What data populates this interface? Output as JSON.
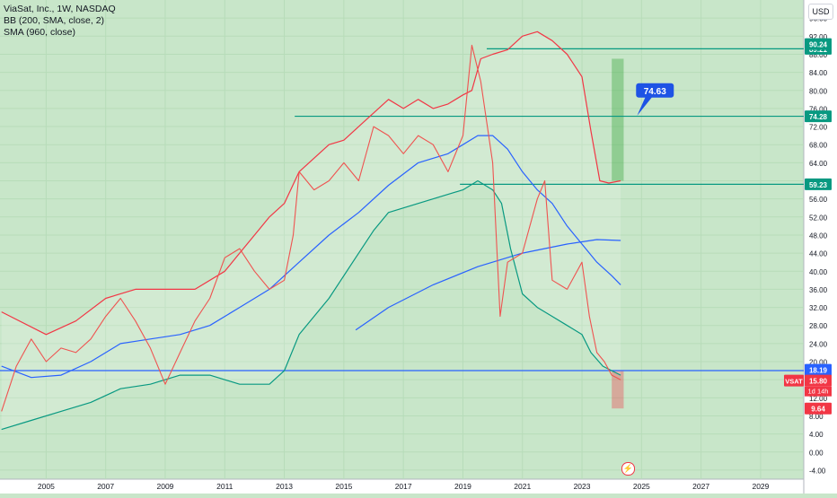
{
  "header": {
    "symbol": "ViaSat, Inc., 1W, NASDAQ",
    "bb": "BB (200, SMA, close, 2)",
    "sma": "SMA (960, close)",
    "currency": "USD",
    "bolt": "⚡"
  },
  "chart_data": {
    "type": "line",
    "title": "ViaSat, Inc., 1W, NASDAQ",
    "xlim": [
      2003.45,
      2030.45
    ],
    "ylim": [
      -6,
      100
    ],
    "x_ticks": [
      "2005",
      "2007",
      "2009",
      "2011",
      "2013",
      "2015",
      "2017",
      "2019",
      "2021",
      "2023",
      "2025",
      "2027",
      "2029"
    ],
    "y_ticks": [
      "-4.00",
      "0.00",
      "4.00",
      "8.00",
      "12.00",
      "16.00",
      "20.00",
      "24.00",
      "28.00",
      "32.00",
      "36.00",
      "40.00",
      "44.00",
      "48.00",
      "52.00",
      "56.00",
      "60.00",
      "64.00",
      "68.00",
      "72.00",
      "76.00",
      "80.00",
      "84.00",
      "88.00",
      "92.00",
      "96.00"
    ],
    "price": {
      "name": "VSAT",
      "color": "#ef5350",
      "points": [
        [
          2003.5,
          9
        ],
        [
          2004.0,
          19
        ],
        [
          2004.5,
          25
        ],
        [
          2005.0,
          20
        ],
        [
          2005.5,
          23
        ],
        [
          2006.0,
          22
        ],
        [
          2006.5,
          25
        ],
        [
          2007.0,
          30
        ],
        [
          2007.5,
          34
        ],
        [
          2008.0,
          29
        ],
        [
          2008.5,
          23
        ],
        [
          2009.0,
          15
        ],
        [
          2009.5,
          22
        ],
        [
          2010.0,
          29
        ],
        [
          2010.5,
          34
        ],
        [
          2011.0,
          43
        ],
        [
          2011.5,
          45
        ],
        [
          2012.0,
          40
        ],
        [
          2012.5,
          36
        ],
        [
          2013.0,
          38
        ],
        [
          2013.3,
          48
        ],
        [
          2013.5,
          62
        ],
        [
          2014.0,
          58
        ],
        [
          2014.5,
          60
        ],
        [
          2015.0,
          64
        ],
        [
          2015.5,
          60
        ],
        [
          2016.0,
          72
        ],
        [
          2016.5,
          70
        ],
        [
          2017.0,
          66
        ],
        [
          2017.5,
          70
        ],
        [
          2018.0,
          68
        ],
        [
          2018.5,
          62
        ],
        [
          2019.0,
          70
        ],
        [
          2019.3,
          90
        ],
        [
          2019.6,
          82
        ],
        [
          2020.0,
          64
        ],
        [
          2020.25,
          30
        ],
        [
          2020.5,
          42
        ],
        [
          2021.0,
          44
        ],
        [
          2021.5,
          56
        ],
        [
          2021.75,
          60
        ],
        [
          2022.0,
          38
        ],
        [
          2022.5,
          36
        ],
        [
          2023.0,
          42
        ],
        [
          2023.25,
          30
        ],
        [
          2023.5,
          22
        ],
        [
          2023.75,
          20
        ],
        [
          2024.0,
          17
        ],
        [
          2024.3,
          16
        ]
      ]
    },
    "bb_upper": {
      "name": "BB upper",
      "color": "#f23645",
      "points": [
        [
          2003.5,
          31
        ],
        [
          2005.0,
          26
        ],
        [
          2006.0,
          29
        ],
        [
          2007.0,
          34
        ],
        [
          2008.0,
          36
        ],
        [
          2009.0,
          36
        ],
        [
          2010.0,
          36
        ],
        [
          2011.0,
          40
        ],
        [
          2011.5,
          44
        ],
        [
          2012.0,
          48
        ],
        [
          2012.5,
          52
        ],
        [
          2013.0,
          55
        ],
        [
          2013.5,
          62
        ],
        [
          2014.0,
          65
        ],
        [
          2014.5,
          68
        ],
        [
          2015.0,
          69
        ],
        [
          2015.5,
          72
        ],
        [
          2016.0,
          75
        ],
        [
          2016.5,
          78
        ],
        [
          2017.0,
          76
        ],
        [
          2017.5,
          78
        ],
        [
          2018.0,
          76
        ],
        [
          2018.5,
          77
        ],
        [
          2019.0,
          79
        ],
        [
          2019.3,
          80
        ],
        [
          2019.6,
          87
        ],
        [
          2020.0,
          88
        ],
        [
          2020.5,
          89
        ],
        [
          2021.0,
          92
        ],
        [
          2021.5,
          93
        ],
        [
          2022.0,
          91
        ],
        [
          2022.5,
          88
        ],
        [
          2023.0,
          83
        ],
        [
          2023.3,
          71
        ],
        [
          2023.6,
          60
        ],
        [
          2023.9,
          59.5
        ],
        [
          2024.3,
          60
        ]
      ]
    },
    "bb_basis": {
      "name": "BB basis",
      "color": "#2962ff",
      "points": [
        [
          2003.5,
          19
        ],
        [
          2004.5,
          16.5
        ],
        [
          2005.5,
          17
        ],
        [
          2006.5,
          20
        ],
        [
          2007.5,
          24
        ],
        [
          2008.5,
          25
        ],
        [
          2009.5,
          26
        ],
        [
          2010.5,
          28
        ],
        [
          2011.5,
          32
        ],
        [
          2012.5,
          36
        ],
        [
          2013.5,
          42
        ],
        [
          2014.5,
          48
        ],
        [
          2015.5,
          53
        ],
        [
          2016.5,
          59
        ],
        [
          2017.5,
          64
        ],
        [
          2018.5,
          66
        ],
        [
          2019.5,
          70
        ],
        [
          2020.0,
          70
        ],
        [
          2020.5,
          67
        ],
        [
          2021.0,
          62
        ],
        [
          2021.5,
          58
        ],
        [
          2022.0,
          55
        ],
        [
          2022.5,
          50
        ],
        [
          2023.0,
          46
        ],
        [
          2023.5,
          42
        ],
        [
          2024.0,
          39
        ],
        [
          2024.3,
          37
        ]
      ]
    },
    "bb_lower": {
      "name": "BB lower",
      "color": "#089981",
      "points": [
        [
          2003.5,
          5
        ],
        [
          2004.5,
          7
        ],
        [
          2005.5,
          9
        ],
        [
          2006.5,
          11
        ],
        [
          2007.5,
          14
        ],
        [
          2008.5,
          15
        ],
        [
          2009.5,
          17
        ],
        [
          2010.5,
          17
        ],
        [
          2011.5,
          15
        ],
        [
          2012.5,
          15
        ],
        [
          2013.0,
          18
        ],
        [
          2013.5,
          26
        ],
        [
          2014.5,
          34
        ],
        [
          2015.5,
          44
        ],
        [
          2016.0,
          49
        ],
        [
          2016.5,
          53
        ],
        [
          2017.5,
          55
        ],
        [
          2018.5,
          57
        ],
        [
          2019.0,
          58
        ],
        [
          2019.5,
          60
        ],
        [
          2020.0,
          58
        ],
        [
          2020.3,
          55
        ],
        [
          2020.6,
          45
        ],
        [
          2021.0,
          35
        ],
        [
          2021.5,
          32
        ],
        [
          2022.0,
          30
        ],
        [
          2022.5,
          28
        ],
        [
          2023.0,
          26
        ],
        [
          2023.3,
          22
        ],
        [
          2023.7,
          19
        ],
        [
          2024.0,
          18
        ],
        [
          2024.3,
          17
        ]
      ]
    },
    "sma960": {
      "name": "SMA 960",
      "color": "#2962ff",
      "points": [
        [
          2015.4,
          27
        ],
        [
          2016.5,
          32
        ],
        [
          2018.0,
          37
        ],
        [
          2019.5,
          41
        ],
        [
          2021.0,
          44
        ],
        [
          2022.5,
          46
        ],
        [
          2023.5,
          47
        ],
        [
          2024.3,
          46.8
        ]
      ]
    },
    "bands": [
      {
        "x0": 2024.0,
        "x1": 2024.4,
        "y0": 60,
        "y1": 87,
        "color": "rgba(76,175,80,0.45)"
      },
      {
        "x0": 2024.0,
        "x1": 2024.4,
        "y0": 9.64,
        "y1": 18,
        "color": "rgba(242,54,69,0.35)"
      }
    ],
    "levels": [
      {
        "x0": 2013.35,
        "value": 74.28,
        "label": "74.28",
        "color": "#089981",
        "lineColor": "#089981"
      },
      {
        "x0": 2019.8,
        "value": 89.21,
        "label": "89.21",
        "color": "#089981",
        "lineColor": "#089981"
      },
      {
        "x0": 2018.9,
        "value": 59.23,
        "label": "59.23",
        "color": "#089981",
        "lineColor": "#089981"
      },
      {
        "x0": 2003.45,
        "value": 18.02,
        "label": "18.02",
        "color": "#2962ff",
        "lineColor": "#2962ff"
      }
    ],
    "price_tags": [
      {
        "value": 90.24,
        "label": "90.24",
        "color": "#089981"
      },
      {
        "value": 18.19,
        "label": "18.19",
        "color": "#2962ff"
      },
      {
        "value": 15.8,
        "label": "15.80",
        "color": "#f23645"
      },
      {
        "value": 9.64,
        "label": "9.64",
        "color": "#f23645"
      }
    ],
    "ticker_tag": {
      "label": "VSAT",
      "countdown": "1d 14h",
      "color": "#f23645"
    },
    "callout": {
      "label": "74.63",
      "x": 2025.45,
      "value": 80,
      "target_x": 2024.85,
      "target_value": 74.4,
      "color": "#1e53e5"
    }
  }
}
